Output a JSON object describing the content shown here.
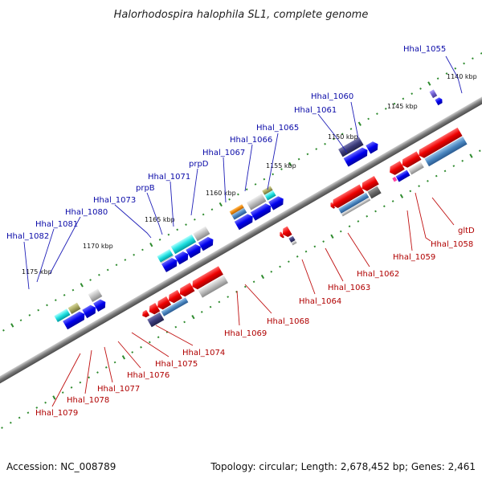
{
  "title": "Halorhodospira halophila SL1, complete genome",
  "footer": {
    "accession": "Accession: NC_008789",
    "summary": "Topology: circular; Length: 2,678,452 bp; Genes: 2,461"
  },
  "scale_labels": [
    "1140 kbp",
    "1145 kbp",
    "1150 kbp",
    "1155 kbp",
    "1160 kbp",
    "1165 kbp",
    "1170 kbp",
    "1175 kbp"
  ],
  "forward_labels": [
    "Hhal_1055",
    "Hhal_1060",
    "Hhal_1061",
    "Hhal_1065",
    "Hhal_1066",
    "Hhal_1067",
    "prpD",
    "Hhal_1071",
    "prpB",
    "Hhal_1073",
    "Hhal_1080",
    "Hhal_1081",
    "Hhal_1082"
  ],
  "reverse_labels": [
    "gltD",
    "Hhal_1058",
    "Hhal_1059",
    "Hhal_1062",
    "Hhal_1063",
    "Hhal_1064",
    "Hhal_1068",
    "Hhal_1069",
    "Hhal_1074",
    "Hhal_1075",
    "Hhal_1076",
    "Hhal_1077",
    "Hhal_1078",
    "Hhal_1079"
  ],
  "colors": {
    "forward_cds": "#0000ee",
    "reverse_cds": "#ee0000",
    "backbone": "#7a7a7a",
    "scale": "#2e8b2e",
    "label_forward": "#0a0aa8",
    "label_reverse": "#b00000"
  }
}
